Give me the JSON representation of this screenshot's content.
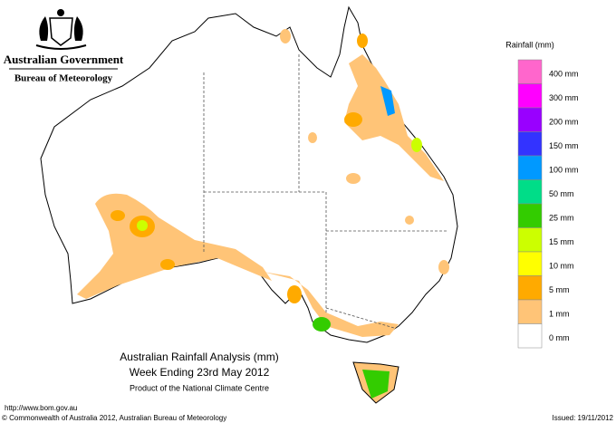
{
  "header": {
    "government": "Australian Government",
    "agency": "Bureau of Meteorology"
  },
  "legend": {
    "title": "Rainfall (mm)",
    "items": [
      {
        "label": "400 mm",
        "color": "#ff66cc"
      },
      {
        "label": "300 mm",
        "color": "#ff00ff"
      },
      {
        "label": "200 mm",
        "color": "#9900ff"
      },
      {
        "label": "150 mm",
        "color": "#3333ff"
      },
      {
        "label": "100 mm",
        "color": "#0099ff"
      },
      {
        "label": "50 mm",
        "color": "#00dd88"
      },
      {
        "label": "25 mm",
        "color": "#33cc00"
      },
      {
        "label": "15 mm",
        "color": "#ccff00"
      },
      {
        "label": "10 mm",
        "color": "#ffff00"
      },
      {
        "label": "5 mm",
        "color": "#ffaa00"
      },
      {
        "label": "1 mm",
        "color": "#ffc477"
      },
      {
        "label": "0 mm",
        "color": "#ffffff"
      }
    ]
  },
  "title": {
    "line1": "Australian Rainfall Analysis (mm)",
    "line2": "Week Ending 23rd May 2012",
    "line3": "Product of the National Climate Centre"
  },
  "footer": {
    "url": "http://www.bom.gov.au",
    "copyright": "© Commonwealth of Australia 2012, Australian Bureau of Meteorology",
    "issued": "Issued: 19/11/2012"
  }
}
